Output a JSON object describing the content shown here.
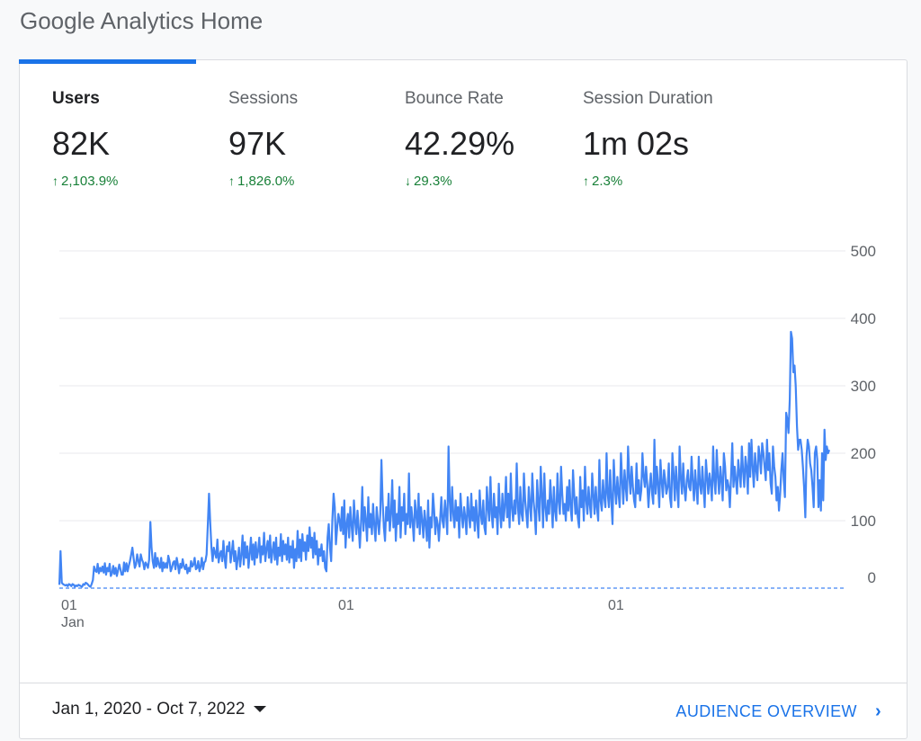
{
  "page_title": "Google Analytics Home",
  "metrics": [
    {
      "label": "Users",
      "value": "82K",
      "change": "2,103.9%",
      "direction": "up",
      "active": true
    },
    {
      "label": "Sessions",
      "value": "97K",
      "change": "1,826.0%",
      "direction": "up",
      "active": false
    },
    {
      "label": "Bounce Rate",
      "value": "42.29%",
      "change": "29.3%",
      "direction": "down",
      "active": false
    },
    {
      "label": "Session Duration",
      "value": "1m 02s",
      "change": "2.3%",
      "direction": "up",
      "active": false
    }
  ],
  "colors": {
    "accent": "#1a73e8",
    "line": "#4285f4",
    "positive": "#188038",
    "grid": "#e8eaed"
  },
  "chart_data": {
    "type": "line",
    "ylim": [
      0,
      500
    ],
    "y_ticks": [
      "0",
      "100",
      "200",
      "300",
      "400",
      "500"
    ],
    "x_ticks": [
      {
        "day": "01",
        "month": "Jan"
      },
      {
        "day": "01",
        "month": ""
      },
      {
        "day": "01",
        "month": ""
      }
    ],
    "baseline_dashed": true,
    "series": [
      {
        "values": [
          5,
          55,
          8,
          6,
          5,
          4,
          5,
          3,
          6,
          5,
          3,
          6,
          5,
          2,
          4,
          3,
          5,
          4,
          3,
          2,
          6,
          5,
          8,
          7,
          5,
          3,
          2,
          6,
          12,
          32,
          26,
          24,
          36,
          22,
          30,
          25,
          32,
          23,
          37,
          20,
          30,
          25,
          36,
          18,
          22,
          33,
          21,
          30,
          18,
          26,
          35,
          28,
          20,
          20,
          38,
          25,
          37,
          25,
          33,
          40,
          50,
          60,
          45,
          30,
          35,
          50,
          40,
          32,
          50,
          42,
          38,
          28,
          38,
          35,
          30,
          42,
          98,
          60,
          40,
          30,
          52,
          32,
          45,
          35,
          30,
          45,
          25,
          38,
          30,
          37,
          30,
          48,
          40,
          25,
          30,
          38,
          40,
          28,
          45,
          35,
          22,
          36,
          30,
          43,
          32,
          28,
          35,
          22,
          30,
          25,
          40,
          32,
          35,
          45,
          28,
          30,
          40,
          25,
          32,
          45,
          28,
          38,
          40,
          50,
          95,
          140,
          98,
          60,
          40,
          60,
          52,
          45,
          72,
          38,
          50,
          55,
          40,
          70,
          45,
          30,
          62,
          55,
          68,
          38,
          52,
          70,
          40,
          55,
          28,
          45,
          60,
          32,
          50,
          78,
          35,
          68,
          45,
          62,
          30,
          52,
          75,
          42,
          65,
          35,
          68,
          45,
          55,
          75,
          38,
          62,
          50,
          82,
          40,
          58,
          70,
          45,
          78,
          38,
          55,
          68,
          42,
          75,
          35,
          60,
          48,
          80,
          40,
          70,
          50,
          65,
          42,
          75,
          38,
          62,
          45,
          70,
          30,
          58,
          40,
          85,
          45,
          72,
          40,
          80,
          55,
          68,
          42,
          78,
          55,
          90,
          60,
          75,
          45,
          82,
          50,
          70,
          35,
          58,
          48,
          65,
          40,
          55,
          30,
          25,
          75,
          95,
          60,
          40,
          100,
          140,
          120,
          65,
          90,
          110,
          100,
          85,
          120,
          80,
          130,
          60,
          95,
          110,
          75,
          120,
          95,
          70,
          130,
          100,
          80,
          115,
          90,
          60,
          100,
          150,
          85,
          120,
          100,
          70,
          135,
          90,
          110,
          80,
          125,
          95,
          70,
          120,
          100,
          80,
          110,
          190,
          130,
          90,
          70,
          120,
          100,
          140,
          85,
          110,
          160,
          90,
          130,
          70,
          110,
          95,
          150,
          75,
          120,
          100,
          140,
          80,
          110,
          95,
          170,
          90,
          120,
          100,
          70,
          130,
          110,
          90,
          140,
          80,
          120,
          100,
          75,
          115,
          95,
          70,
          130,
          60,
          105,
          90,
          140,
          115,
          80,
          105,
          95,
          70,
          100,
          135,
          100,
          90,
          130,
          110,
          80,
          210,
          130,
          100,
          150,
          110,
          90,
          130,
          100,
          120,
          75,
          140,
          110,
          90,
          120,
          105,
          80,
          135,
          110,
          90,
          140,
          100,
          120,
          85,
          130,
          100,
          75,
          145,
          110,
          95,
          130,
          90,
          80,
          150,
          120,
          100,
          165,
          110,
          90,
          140,
          105,
          120,
          80,
          155,
          115,
          90,
          140,
          100,
          120,
          165,
          105,
          140,
          90,
          170,
          120,
          100,
          130,
          110,
          185,
          120,
          95,
          150,
          110,
          100,
          170,
          130,
          110,
          90,
          150,
          125,
          100,
          170,
          130,
          110,
          80,
          160,
          125,
          100,
          180,
          140,
          90,
          170,
          120,
          100,
          130,
          110,
          160,
          130,
          90,
          150,
          115,
          100,
          170,
          130,
          110,
          180,
          140,
          110,
          125,
          100,
          150,
          115,
          160,
          120,
          100,
          175,
          140,
          110,
          135,
          105,
          90,
          165,
          120,
          145,
          100,
          180,
          130,
          110,
          150,
          125,
          105,
          170,
          140,
          110,
          150,
          120,
          100,
          190,
          130,
          115,
          160,
          135,
          120,
          200,
          140,
          120,
          175,
          130,
          95,
          190,
          150,
          125,
          165,
          140,
          120,
          200,
          160,
          125,
          175,
          150,
          130,
          210,
          165,
          140,
          180,
          150,
          130,
          120,
          185,
          140,
          160,
          130,
          145,
          200,
          165,
          150,
          180,
          155,
          120,
          150,
          170,
          140,
          125,
          220,
          140,
          180,
          155,
          120,
          190,
          160,
          135,
          175,
          160,
          140,
          150,
          185,
          135,
          120,
          200,
          170,
          130,
          180,
          150,
          120,
          210,
          165,
          140,
          185,
          150,
          130,
          160,
          175,
          150,
          145,
          195,
          160,
          130,
          175,
          150,
          125,
          195,
          155,
          140,
          180,
          150,
          120,
          190,
          165,
          140,
          170,
          155,
          130,
          210,
          160,
          140,
          205,
          165,
          140,
          180,
          160,
          130,
          200,
          180,
          145,
          160,
          150,
          120,
          165,
          215,
          150,
          180,
          160,
          140,
          190,
          170,
          150,
          210,
          175,
          150,
          195,
          180,
          140,
          215,
          165,
          220,
          180,
          150,
          200,
          175,
          160,
          210,
          195,
          170,
          215,
          200,
          180,
          160,
          220,
          175,
          200,
          155,
          140,
          210,
          180,
          165,
          130,
          150,
          115,
          140,
          175,
          200,
          160,
          135,
          260,
          250,
          230,
          280,
          380,
          370,
          320,
          330,
          300,
          240,
          205,
          220,
          220,
          205,
          180,
          150,
          105,
          195,
          220,
          210,
          185,
          175,
          150,
          120,
          200,
          210,
          190,
          120,
          160,
          115,
          200,
          130,
          235,
          190,
          210,
          200,
          205
        ]
      }
    ]
  },
  "footer": {
    "date_range": "Jan 1, 2020 - Oct 7, 2022",
    "link_label": "AUDIENCE OVERVIEW"
  }
}
